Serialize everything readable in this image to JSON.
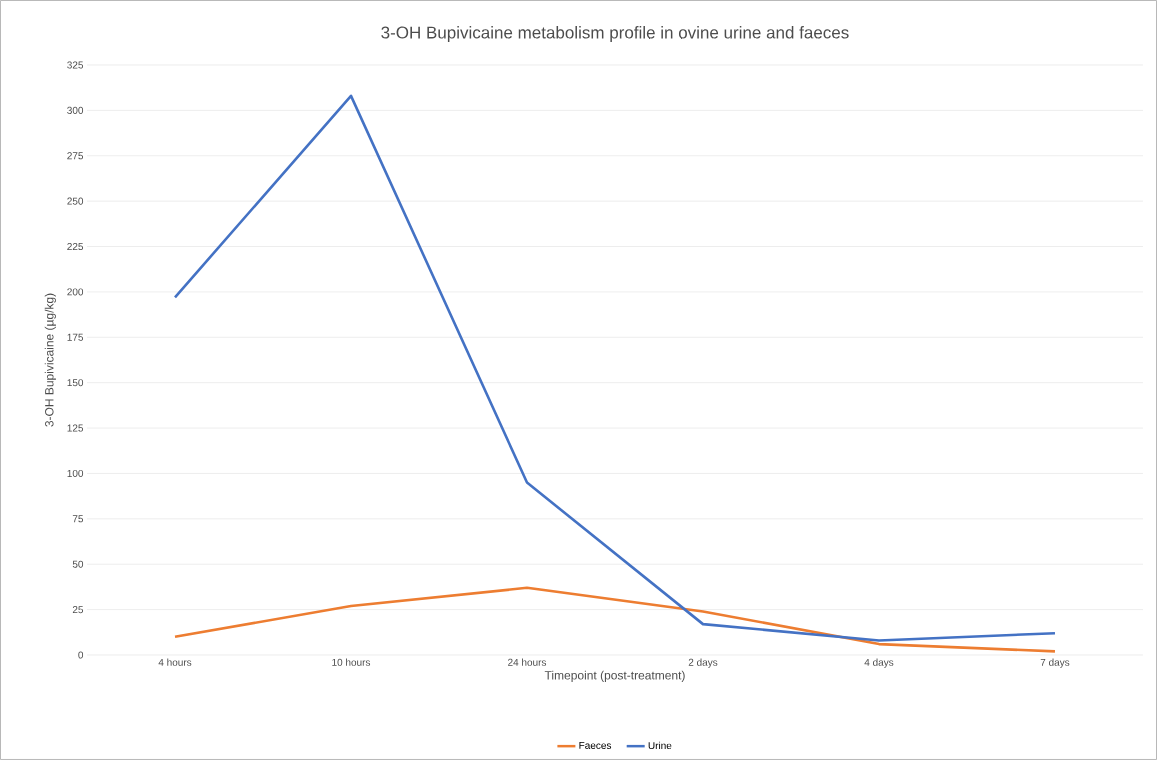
{
  "chart_data": {
    "type": "line",
    "title": "3-OH Bupivicaine metabolism profile in ovine urine and faeces",
    "xlabel": "Timepoint (post-treatment)",
    "ylabel": "3-OH Bupivicaine (µg/kg)",
    "categories": [
      "4 hours",
      "10 hours",
      "24 hours",
      "2 days",
      "4 days",
      "7 days"
    ],
    "series": [
      {
        "name": "Faeces",
        "color": "#ed7d31",
        "values": [
          10,
          27,
          37,
          24,
          6,
          2
        ]
      },
      {
        "name": "Urine",
        "color": "#4472c4",
        "values": [
          197,
          308,
          95,
          17,
          8,
          12
        ]
      }
    ],
    "ylim": [
      0,
      325
    ],
    "yticks": [
      0,
      25,
      50,
      75,
      100,
      125,
      150,
      175,
      200,
      225,
      250,
      275,
      300,
      325
    ],
    "grid": "y",
    "legend": "bottom",
    "line_style": "solid"
  }
}
